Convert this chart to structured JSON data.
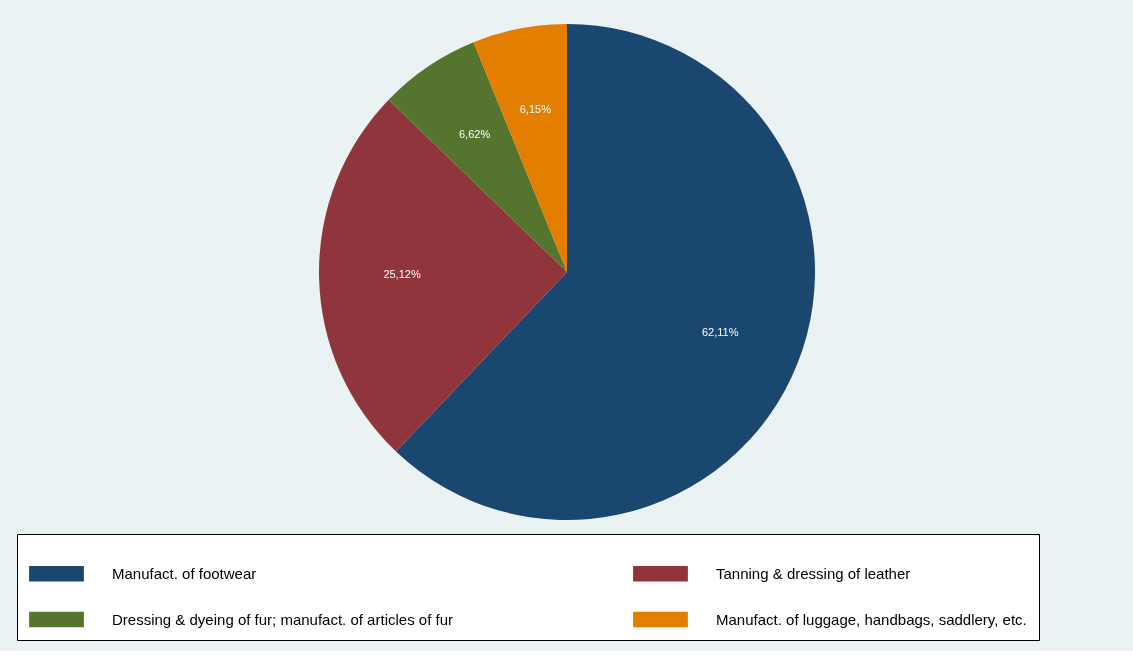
{
  "chart_data": {
    "type": "pie",
    "categories": [
      "Manufact. of footwear",
      "Tanning & dressing of leather",
      "Dressing & dyeing of fur; manufact. of articles of fur",
      "Manufact. of luggage, handbags, saddlery, etc."
    ],
    "values": [
      62.11,
      25.12,
      6.62,
      6.15
    ],
    "value_labels": [
      "62,11%",
      "25,12%",
      "6,62%",
      "6,15%"
    ],
    "colors": [
      "#1a476f",
      "#90353b",
      "#55752f",
      "#e37e00"
    ],
    "legend": "bottom"
  }
}
